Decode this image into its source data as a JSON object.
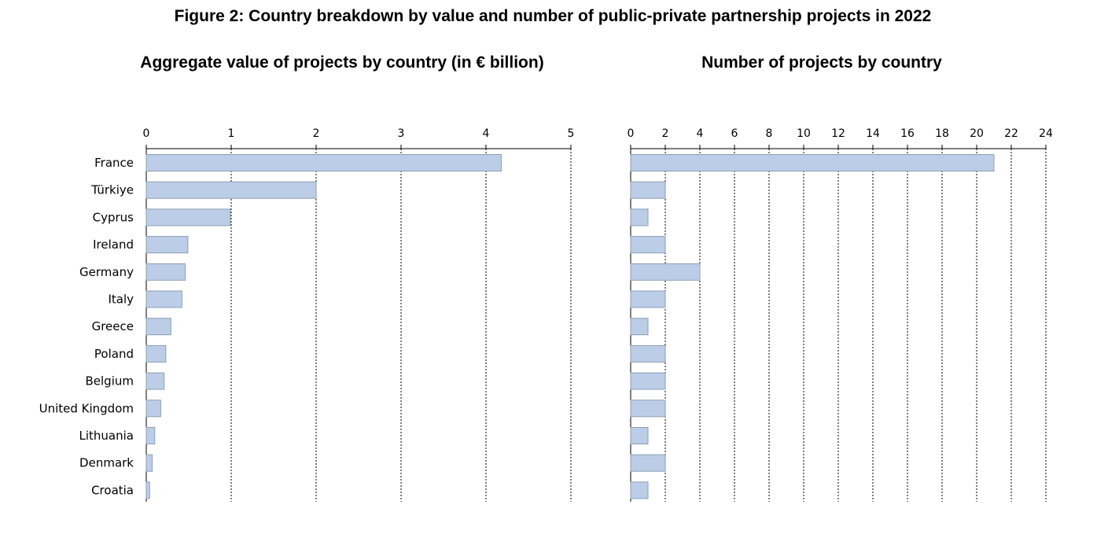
{
  "figure_title": "Figure 2: Country breakdown by value and number of public-private partnership projects in 2022",
  "colors": {
    "bar_fill": "#bccee7",
    "bar_stroke": "#8e9db3",
    "grid": "#000000"
  },
  "chart_data": [
    {
      "type": "bar",
      "orientation": "horizontal",
      "title": "Aggregate value of projects by country (in € billion)",
      "categories": [
        "France",
        "Türkiye",
        "Cyprus",
        "Ireland",
        "Germany",
        "Italy",
        "Greece",
        "Poland",
        "Belgium",
        "United Kingdom",
        "Lithuania",
        "Denmark",
        "Croatia"
      ],
      "values": [
        4.18,
        2.0,
        0.99,
        0.49,
        0.46,
        0.42,
        0.29,
        0.23,
        0.21,
        0.17,
        0.1,
        0.07,
        0.04
      ],
      "xlim": [
        0,
        5
      ],
      "ticks": [
        0,
        1,
        2,
        3,
        4,
        5
      ],
      "axis_position": "top",
      "grid": true
    },
    {
      "type": "bar",
      "orientation": "horizontal",
      "title": "Number of projects by country",
      "categories": [
        "France",
        "Türkiye",
        "Cyprus",
        "Ireland",
        "Germany",
        "Italy",
        "Greece",
        "Poland",
        "Belgium",
        "United Kingdom",
        "Lithuania",
        "Denmark",
        "Croatia"
      ],
      "values": [
        21,
        2,
        1,
        2,
        4,
        2,
        1,
        2,
        2,
        2,
        1,
        2,
        1
      ],
      "xlim": [
        0,
        24
      ],
      "ticks": [
        0,
        2,
        4,
        6,
        8,
        10,
        12,
        14,
        16,
        18,
        20,
        22,
        24
      ],
      "axis_position": "top",
      "grid": true
    }
  ]
}
